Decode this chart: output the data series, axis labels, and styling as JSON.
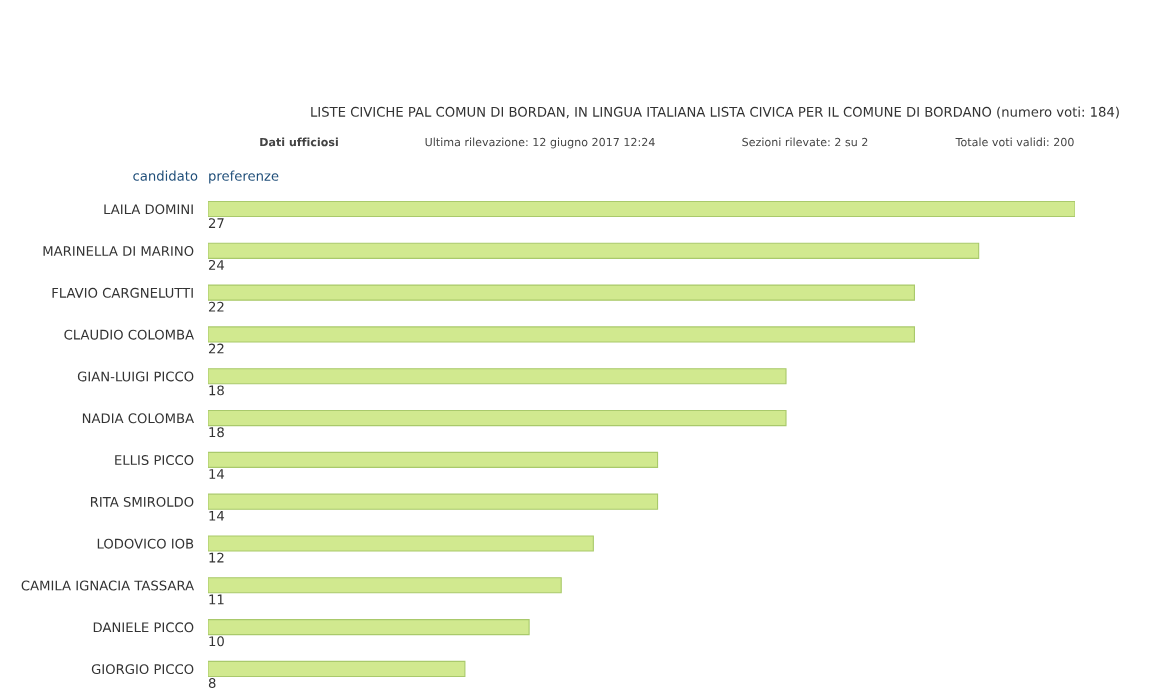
{
  "chart_data": {
    "type": "bar",
    "orientation": "horizontal",
    "title": "LISTE CIVICHE PAL COMUN DI BORDAN, IN LINGUA ITALIANA LISTA CIVICA PER IL COMUNE DI BORDANO (numero voti: 184)",
    "annotations": [
      "Dati ufficiosi",
      "Ultima rilevazione: 12 giugno 2017 12:24",
      "Sezioni rilevate: 2 su 2",
      "Totale voti validi: 200"
    ],
    "ylabel": "candidato",
    "xlabel": "preferenze",
    "categories": [
      "LAILA DOMINI",
      "MARINELLA DI MARINO",
      "FLAVIO CARGNELUTTI",
      "CLAUDIO COLOMBA",
      "GIAN-LUIGI PICCO",
      "NADIA COLOMBA",
      "ELLIS PICCO",
      "RITA SMIROLDO",
      "LODOVICO IOB",
      "CAMILA IGNACIA TASSARA",
      "DANIELE PICCO",
      "GIORGIO PICCO"
    ],
    "values": [
      27,
      24,
      22,
      22,
      18,
      18,
      14,
      14,
      12,
      11,
      10,
      8
    ],
    "color": "#d1e98f",
    "data_labels": true,
    "grid": false,
    "legend": false
  }
}
